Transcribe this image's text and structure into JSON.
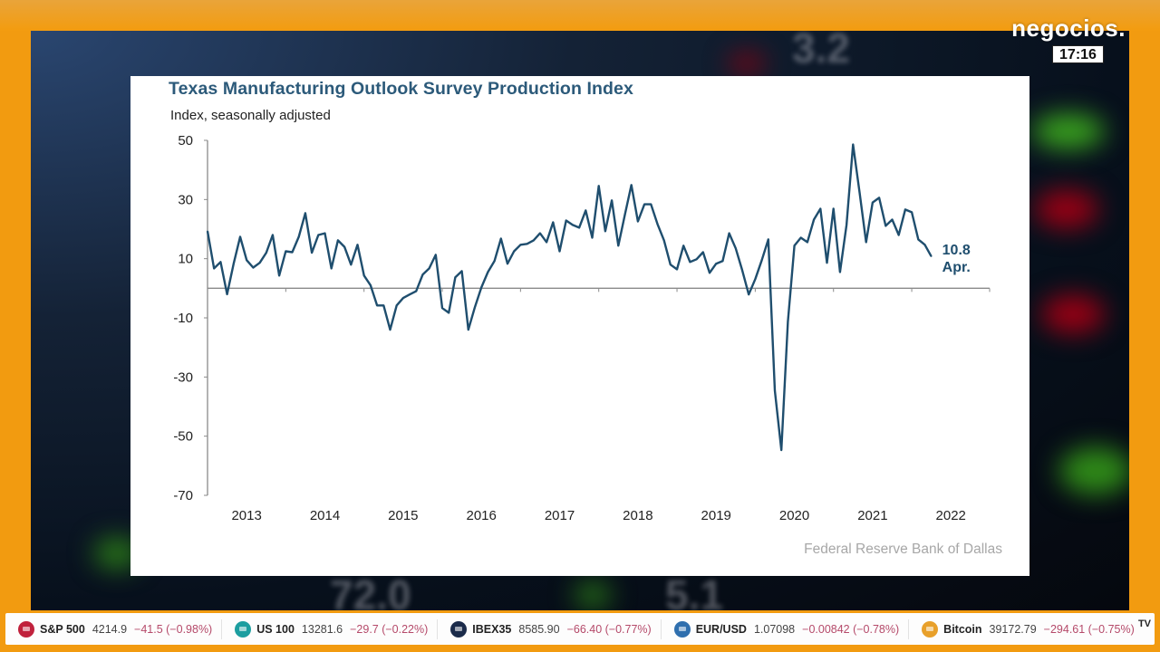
{
  "broadcast": {
    "logo": "negocios.",
    "clock": "17:16",
    "frame_color": "#f29b10"
  },
  "ticker": [
    {
      "name": "S&P 500",
      "price": "4214.9",
      "change": "−41.5 (−0.98%)",
      "icon": "sp500-icon",
      "icon_color": "#c0213c"
    },
    {
      "name": "US 100",
      "price": "13281.6",
      "change": "−29.7 (−0.22%)",
      "icon": "us100-icon",
      "icon_color": "#1c9ea0"
    },
    {
      "name": "IBEX35",
      "price": "8585.90",
      "change": "−66.40 (−0.77%)",
      "icon": "ibex35-icon",
      "icon_color": "#1b2b4a"
    },
    {
      "name": "EUR/USD",
      "price": "1.07098",
      "change": "−0.00842 (−0.78%)",
      "icon": "globe-icon",
      "icon_color": "#2f6fae"
    },
    {
      "name": "Bitcoin",
      "price": "39172.79",
      "change": "−294.61 (−0.75%)",
      "icon": "bitcoin-icon",
      "icon_color": "#e8a02a"
    }
  ],
  "ticker_brand": "TV",
  "chart_data": {
    "type": "line",
    "title": "Texas Manufacturing Outlook Survey Production Index",
    "subtitle": "Index, seasonally adjusted",
    "source": "Federal Reserve Bank of Dallas",
    "xlabel": "",
    "ylabel": "Index, seasonally adjusted",
    "ylim": [
      -70,
      50
    ],
    "yticks": [
      50,
      30,
      10,
      -10,
      -30,
      -50,
      -70
    ],
    "xticks": [
      "2013",
      "2014",
      "2015",
      "2016",
      "2017",
      "2018",
      "2019",
      "2020",
      "2021",
      "2022"
    ],
    "x_start": "2013-01",
    "x_end": "2022-04",
    "grid": false,
    "zero_line": true,
    "line_color": "#1f4e6e",
    "annotation": {
      "value": "10.8",
      "label": "Apr."
    },
    "series": [
      {
        "name": "Production Index",
        "frequency": "monthly",
        "values": [
          19.3,
          6.7,
          8.9,
          -2.0,
          8.3,
          17.4,
          9.5,
          7.0,
          8.6,
          12.0,
          18.0,
          4.3,
          12.5,
          12.2,
          17.4,
          25.4,
          12.0,
          18.0,
          18.6,
          6.7,
          16.2,
          14.0,
          8.0,
          14.7,
          4.3,
          1.0,
          -5.8,
          -5.8,
          -14.0,
          -5.8,
          -3.3,
          -2.1,
          -1.0,
          4.6,
          6.7,
          11.3,
          -6.7,
          -8.3,
          3.7,
          5.8,
          -14.0,
          -6.4,
          0.3,
          5.5,
          9.2,
          16.8,
          8.3,
          12.5,
          14.7,
          15.0,
          16.2,
          18.6,
          15.6,
          22.3,
          12.5,
          22.9,
          21.4,
          20.5,
          26.3,
          17.1,
          34.6,
          19.3,
          29.7,
          14.4,
          24.8,
          34.9,
          22.6,
          28.4,
          28.4,
          21.7,
          16.2,
          8.0,
          6.4,
          14.4,
          8.9,
          9.8,
          12.2,
          5.2,
          8.3,
          9.2,
          18.6,
          13.5,
          6.1,
          -2.1,
          3.1,
          9.5,
          16.5,
          -34.6,
          -54.7,
          -11.3,
          14.4,
          17.1,
          15.6,
          23.2,
          26.9,
          8.6,
          26.9,
          5.5,
          21.4,
          48.6,
          32.4,
          15.6,
          29.0,
          30.6,
          21.1,
          23.2,
          18.0,
          26.6,
          25.7,
          16.5,
          14.7,
          10.8
        ]
      }
    ]
  }
}
